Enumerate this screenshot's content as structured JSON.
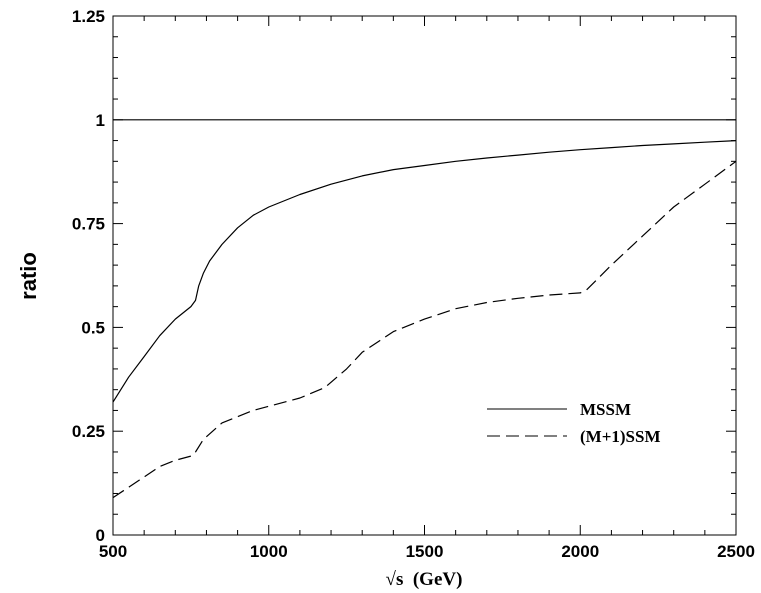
{
  "chart_data": {
    "type": "line",
    "title": "",
    "xlabel": "√s  (GeV)",
    "ylabel": "ratio",
    "xlim": [
      500,
      2500
    ],
    "ylim": [
      0,
      1.25
    ],
    "x_ticks": [
      500,
      1000,
      1500,
      2000,
      2500
    ],
    "x_tick_labels": [
      "500",
      "1000",
      "1500",
      "2000",
      "2500"
    ],
    "y_ticks": [
      0,
      0.25,
      0.5,
      0.75,
      1,
      1.25
    ],
    "y_tick_labels": [
      "0",
      "0.25",
      "0.5",
      "0.75",
      "1",
      "1.25"
    ],
    "grid": false,
    "legend_position": "bottom-right",
    "reference_line": {
      "y": 1
    },
    "series": [
      {
        "name": "MSSM",
        "style": "solid",
        "x": [
          500,
          550,
          600,
          650,
          700,
          750,
          765,
          775,
          790,
          810,
          850,
          900,
          950,
          1000,
          1100,
          1200,
          1300,
          1400,
          1500,
          1600,
          1700,
          1800,
          1900,
          2000,
          2100,
          2200,
          2300,
          2400,
          2500
        ],
        "y": [
          0.32,
          0.38,
          0.43,
          0.48,
          0.52,
          0.55,
          0.565,
          0.6,
          0.63,
          0.66,
          0.7,
          0.74,
          0.77,
          0.79,
          0.82,
          0.845,
          0.865,
          0.88,
          0.89,
          0.9,
          0.908,
          0.915,
          0.922,
          0.928,
          0.933,
          0.938,
          0.942,
          0.946,
          0.95
        ]
      },
      {
        "name": "(M+1)SSM",
        "style": "dashed",
        "x": [
          500,
          550,
          600,
          650,
          700,
          750,
          765,
          790,
          850,
          900,
          950,
          1000,
          1100,
          1180,
          1250,
          1300,
          1400,
          1500,
          1600,
          1700,
          1800,
          1900,
          2000,
          2020,
          2100,
          2200,
          2300,
          2400,
          2500
        ],
        "y": [
          0.09,
          0.115,
          0.14,
          0.165,
          0.18,
          0.19,
          0.2,
          0.23,
          0.27,
          0.285,
          0.3,
          0.31,
          0.33,
          0.355,
          0.4,
          0.44,
          0.49,
          0.52,
          0.545,
          0.56,
          0.57,
          0.578,
          0.583,
          0.59,
          0.65,
          0.72,
          0.79,
          0.845,
          0.9
        ]
      }
    ]
  }
}
